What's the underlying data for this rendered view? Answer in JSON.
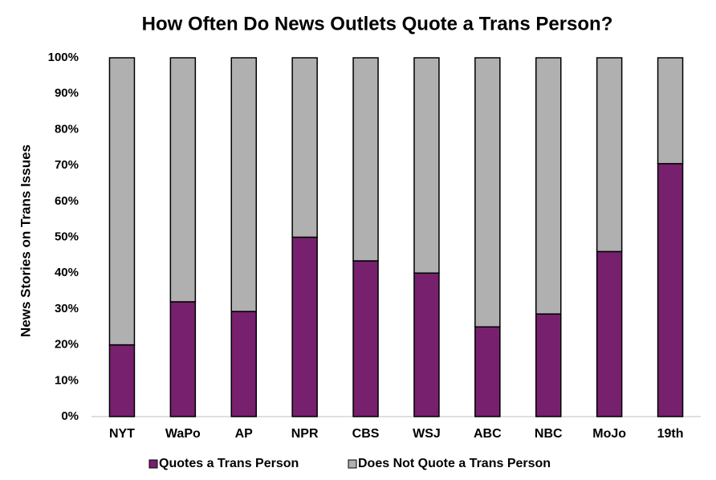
{
  "chart_data": {
    "type": "stacked_bar",
    "title": "How Often Do News Outlets Quote a Trans Person?",
    "y_label": "News Stories on Trans Issues",
    "categories": [
      "NYT",
      "WaPo",
      "AP",
      "NPR",
      "CBS",
      "WSJ",
      "ABC",
      "NBC",
      "MoJo",
      "19th"
    ],
    "series": [
      {
        "name": "Quotes a Trans Person",
        "color": "#76206e",
        "values": [
          20,
          32,
          29.3,
          50,
          43.4,
          40,
          25,
          28.6,
          46,
          70.5
        ]
      },
      {
        "name": "Does Not Quote a Trans Person",
        "color": "#b0b0b0",
        "values": [
          80,
          68,
          70.7,
          50,
          56.6,
          60,
          75,
          71.4,
          54,
          29.5
        ]
      }
    ],
    "ylim": [
      0,
      100
    ],
    "yticks": [
      {
        "value": 0,
        "label": "0%"
      },
      {
        "value": 10,
        "label": "10%"
      },
      {
        "value": 20,
        "label": "20%"
      },
      {
        "value": 30,
        "label": "30%"
      },
      {
        "value": 40,
        "label": "40%"
      },
      {
        "value": 50,
        "label": "50%"
      },
      {
        "value": 60,
        "label": "60%"
      },
      {
        "value": 70,
        "label": "70%"
      },
      {
        "value": 80,
        "label": "80%"
      },
      {
        "value": 90,
        "label": "90%"
      },
      {
        "value": 100,
        "label": "100%"
      }
    ],
    "grid": false,
    "legend": "bottom"
  }
}
